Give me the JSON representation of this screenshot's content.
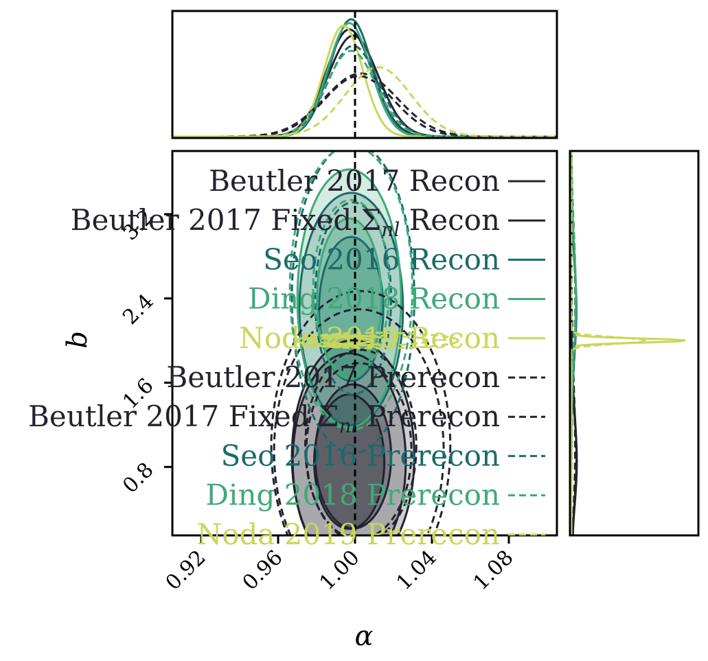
{
  "chart_data": {
    "type": "corner",
    "xlabel": "α",
    "ylabel": "b",
    "x_ticks": [
      "0.92",
      "0.96",
      "1.00",
      "1.04",
      "1.08"
    ],
    "y_ticks": [
      "0.8",
      "1.6",
      "2.4",
      "3.2"
    ],
    "xlim": [
      0.905,
      1.105
    ],
    "ylim": [
      0.15,
      3.8
    ],
    "truth": {
      "alpha": 1.0
    },
    "legend_location": "upper right",
    "series": [
      {
        "name": "Beutler 2017 Recon",
        "color": "#23232f",
        "dash": false,
        "alpha_mean": 0.999,
        "alpha_sd": 0.013,
        "b_mean": 0.9,
        "b_sd": 0.45,
        "top_peak": 0.8
      },
      {
        "name": "Beutler 2017 Fixed $\\Sigma_{nl}$ Recon",
        "color": "#23232f",
        "dash": false,
        "alpha_mean": 0.997,
        "alpha_sd": 0.012,
        "b_mean": 0.85,
        "b_sd": 0.42,
        "top_peak": 0.85
      },
      {
        "name": "Seo 2016 Recon",
        "color": "#1b6b6a",
        "dash": false,
        "alpha_mean": 0.998,
        "alpha_sd": 0.011,
        "b_mean": 2.3,
        "b_sd": 0.45,
        "top_peak": 0.93
      },
      {
        "name": "Ding 2018 Recon",
        "color": "#3fa97a",
        "dash": false,
        "alpha_mean": 0.997,
        "alpha_sd": 0.011,
        "b_mean": 2.4,
        "b_sd": 0.5,
        "top_peak": 0.9
      },
      {
        "name": "Noda 2019 Recon",
        "color": "#c9d65a",
        "dash": false,
        "alpha_mean": 0.994,
        "alpha_sd": 0.01,
        "b_mean": 2.0,
        "b_sd": 0.02,
        "top_peak": 0.88
      },
      {
        "name": "Beutler 2017 Prerecon",
        "color": "#23232f",
        "dash": true,
        "alpha_mean": 1.003,
        "alpha_sd": 0.019,
        "b_mean": 1.0,
        "b_sd": 0.6,
        "top_peak": 0.5
      },
      {
        "name": "Beutler 2017 Fixed $\\Sigma_{nl}$ Prerecon",
        "color": "#23232f",
        "dash": true,
        "alpha_mean": 1.002,
        "alpha_sd": 0.018,
        "b_mean": 0.95,
        "b_sd": 0.55,
        "top_peak": 0.48
      },
      {
        "name": "Seo 2016 Prerecon",
        "color": "#1b6b6a",
        "dash": true,
        "alpha_mean": 0.999,
        "alpha_sd": 0.013,
        "b_mean": 2.4,
        "b_sd": 0.6,
        "top_peak": 0.72
      },
      {
        "name": "Ding 2018 Prerecon",
        "color": "#3fa97a",
        "dash": true,
        "alpha_mean": 0.998,
        "alpha_sd": 0.013,
        "b_mean": 2.5,
        "b_sd": 0.55,
        "top_peak": 0.68
      },
      {
        "name": "Noda 2019 Prerecon",
        "color": "#c9d65a",
        "dash": true,
        "alpha_mean": 1.012,
        "alpha_sd": 0.017,
        "b_mean": 2.0,
        "b_sd": 0.03,
        "top_peak": 0.55
      }
    ]
  }
}
